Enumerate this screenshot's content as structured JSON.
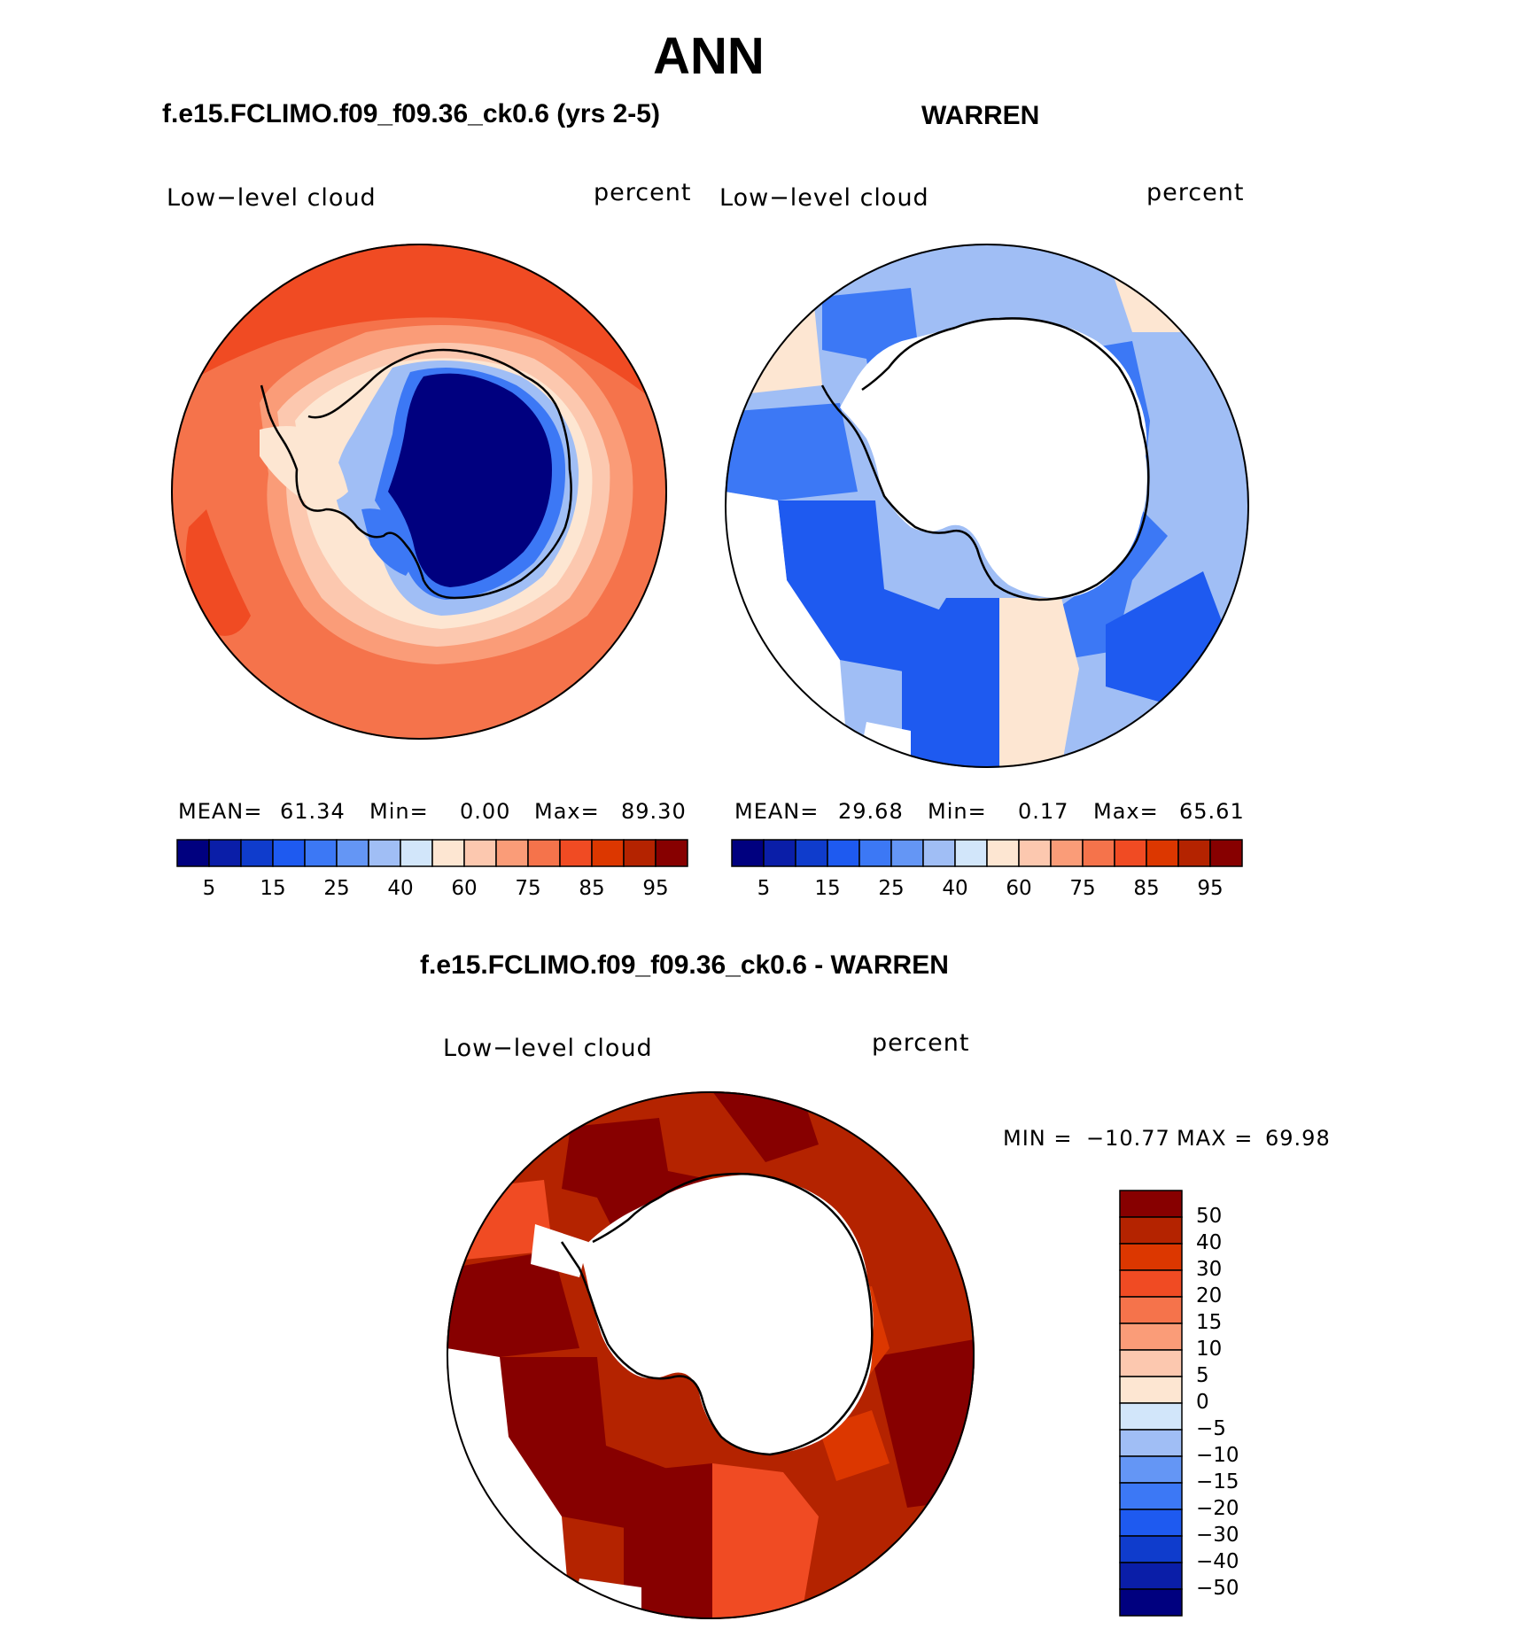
{
  "title": "ANN",
  "panel_a": {
    "title": "f.e15.FCLIMO.f09_f09.36_ck0.6 (yrs 2-5)",
    "variable": "Low−level cloud",
    "units": "percent",
    "stats": {
      "mean_label": "MEAN=",
      "mean": "61.34",
      "min_label": "Min=",
      "min": "0.00",
      "max_label": "Max=",
      "max": "89.30"
    },
    "colorbar_ticks": [
      "5",
      "15",
      "25",
      "40",
      "60",
      "75",
      "85",
      "95"
    ]
  },
  "panel_b": {
    "title": "WARREN",
    "variable": "Low−level cloud",
    "units": "percent",
    "stats": {
      "mean_label": "MEAN=",
      "mean": "29.68",
      "min_label": "Min=",
      "min": "0.17",
      "max_label": "Max=",
      "max": "65.61"
    },
    "colorbar_ticks": [
      "5",
      "15",
      "25",
      "40",
      "60",
      "75",
      "85",
      "95"
    ]
  },
  "panel_c": {
    "title": "f.e15.FCLIMO.f09_f09.36_ck0.6 - WARREN",
    "variable": "Low−level cloud",
    "units": "percent",
    "stats": {
      "min_label": "MIN =",
      "min": "−10.77",
      "max_label": "MAX =",
      "max": "69.98"
    },
    "colorbar_ticks": [
      "50",
      "40",
      "30",
      "20",
      "15",
      "10",
      "5",
      "0",
      "−5",
      "−10",
      "−15",
      "−20",
      "−30",
      "−40",
      "−50"
    ]
  },
  "colors": {
    "abs_scale": [
      "#00007f",
      "#0a1ea8",
      "#0f3ccc",
      "#1e5af0",
      "#3c78f5",
      "#6496f5",
      "#a0bef5",
      "#d2e6fa",
      "#fde6d2",
      "#fcc8af",
      "#fa9c78",
      "#f5734b",
      "#f04b23",
      "#dc3700",
      "#b42300",
      "#870000"
    ],
    "diff_scale": [
      "#870000",
      "#b42300",
      "#dc3700",
      "#f04b23",
      "#f5734b",
      "#fa9c78",
      "#fcc8af",
      "#fde6d2",
      "#d2e6fa",
      "#a0bef5",
      "#6496f5",
      "#3c78f5",
      "#1e5af0",
      "#0f3ccc",
      "#0a1ea8",
      "#00007f"
    ]
  }
}
